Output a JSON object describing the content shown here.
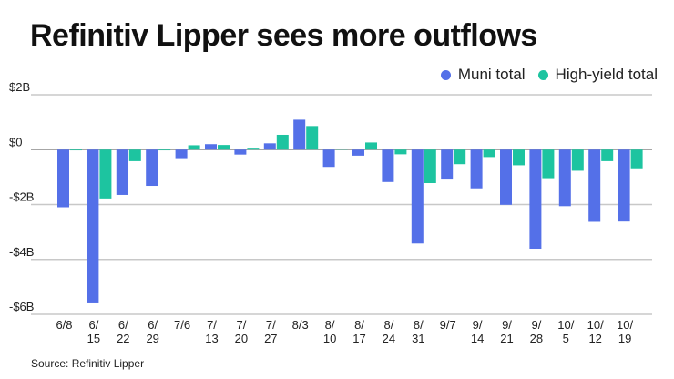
{
  "chart_data": {
    "type": "bar",
    "title": "Refinitiv Lipper sees more outflows",
    "xlabel": "",
    "ylabel": "",
    "units": "USD billions",
    "ylim": [
      -6,
      2
    ],
    "yticks": [
      2,
      0,
      -2,
      -4,
      -6
    ],
    "ytick_labels": [
      "$2B",
      "$0",
      "-$2B",
      "-$4B",
      "-$6B"
    ],
    "grid": "horizontal",
    "legend_position": "top-right",
    "categories": [
      "6/8",
      "6/15",
      "6/22",
      "6/29",
      "7/6",
      "7/13",
      "7/20",
      "7/27",
      "8/3",
      "8/10",
      "8/17",
      "8/24",
      "8/31",
      "9/7",
      "9/14",
      "9/21",
      "9/28",
      "10/5",
      "10/12",
      "10/19"
    ],
    "category_labels": [
      [
        "6/8"
      ],
      [
        "6/",
        "15"
      ],
      [
        "6/",
        "22"
      ],
      [
        "6/",
        "29"
      ],
      [
        "7/6"
      ],
      [
        "7/",
        "13"
      ],
      [
        "7/",
        "20"
      ],
      [
        "7/",
        "27"
      ],
      [
        "8/3"
      ],
      [
        "8/",
        "10"
      ],
      [
        "8/",
        "17"
      ],
      [
        "8/",
        "24"
      ],
      [
        "8/",
        "31"
      ],
      [
        "9/7"
      ],
      [
        "9/",
        "14"
      ],
      [
        "9/",
        "21"
      ],
      [
        "9/",
        "28"
      ],
      [
        "10/",
        "5"
      ],
      [
        "10/",
        "12"
      ],
      [
        "10/",
        "19"
      ]
    ],
    "series": [
      {
        "name": "Muni total",
        "color": "#5470e8",
        "values": [
          -2.1,
          -5.6,
          -1.65,
          -1.32,
          -0.31,
          0.2,
          -0.18,
          0.23,
          1.09,
          -0.63,
          -0.22,
          -1.18,
          -3.42,
          -1.09,
          -1.41,
          -2.01,
          -3.61,
          -2.06,
          -2.63,
          -2.62
        ]
      },
      {
        "name": "High-yield total",
        "color": "#1dc4a0",
        "values": [
          -0.02,
          -1.78,
          -0.42,
          -0.02,
          0.16,
          0.17,
          0.07,
          0.54,
          0.86,
          0.03,
          0.26,
          -0.17,
          -1.22,
          -0.53,
          -0.27,
          -0.57,
          -1.04,
          -0.77,
          -0.42,
          -0.68
        ]
      }
    ]
  },
  "header": {
    "title": "Refinitiv Lipper sees more outflows"
  },
  "legend": {
    "items": [
      {
        "label": "Muni total",
        "color": "#5470e8"
      },
      {
        "label": "High-yield total",
        "color": "#1dc4a0"
      }
    ]
  },
  "footer": {
    "source": "Source: Refinitiv Lipper"
  }
}
